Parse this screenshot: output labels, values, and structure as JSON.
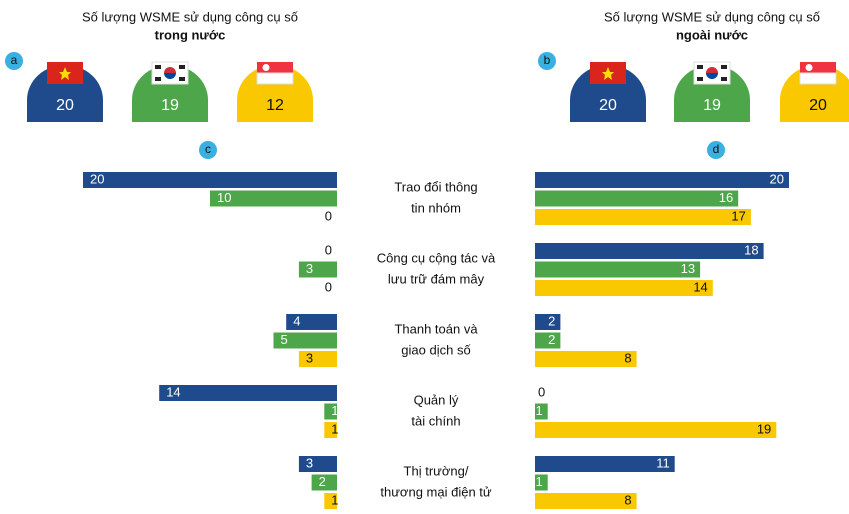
{
  "chart_data": {
    "type": "bar",
    "categories": [
      [
        "Trao đổi thông",
        "tin nhóm"
      ],
      [
        "Công cụ cộng tác và",
        "lưu trữ đám mây"
      ],
      [
        "Thanh toán và",
        "giao dịch số"
      ],
      [
        "Quản lý",
        "tài chính"
      ],
      [
        "Thị trường/",
        "thương mại điện tử"
      ]
    ],
    "panels": [
      {
        "title": "Số lượng WSME sử dụng công cụ số",
        "subtitle": "trong nước",
        "summary_label": "a",
        "summary_values": [
          20,
          19,
          12
        ],
        "chart_label": "c",
        "direction": "left",
        "xlim": [
          0,
          20
        ],
        "series": [
          {
            "color": "#1f4a8c",
            "values": [
              20,
              0,
              4,
              14,
              3
            ]
          },
          {
            "color": "#4ea64a",
            "values": [
              10,
              3,
              5,
              1,
              2
            ]
          },
          {
            "color": "#f9c800",
            "values": [
              0,
              0,
              3,
              1,
              1
            ]
          }
        ]
      },
      {
        "title": "Số lượng WSME sử dụng công cụ số",
        "subtitle": "ngoài nước",
        "summary_label": "b",
        "summary_values": [
          20,
          19,
          20
        ],
        "chart_label": "d",
        "direction": "right",
        "xlim": [
          0,
          20
        ],
        "series": [
          {
            "color": "#1f4a8c",
            "values": [
              20,
              18,
              2,
              0,
              11
            ]
          },
          {
            "color": "#4ea64a",
            "values": [
              16,
              13,
              2,
              1,
              1
            ]
          },
          {
            "color": "#f9c800",
            "values": [
              17,
              14,
              8,
              19,
              8
            ]
          }
        ]
      }
    ]
  }
}
